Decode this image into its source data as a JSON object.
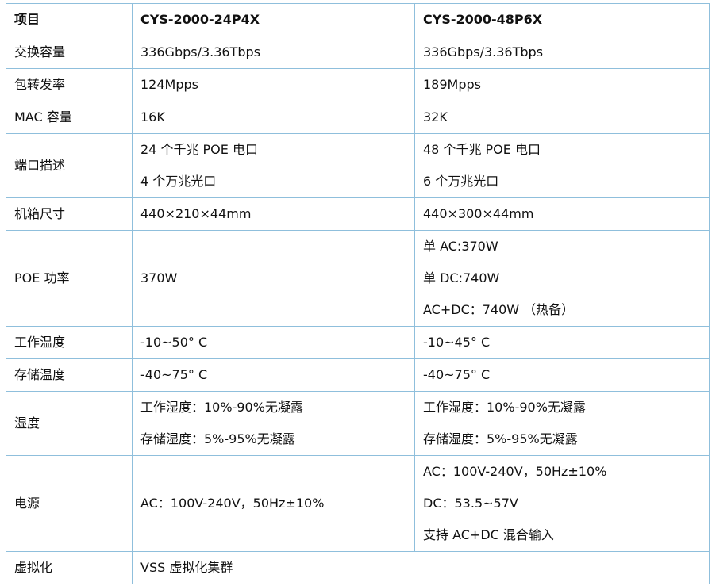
{
  "table": {
    "header": [
      "项目",
      "CYS-2000-24P4X",
      "CYS-2000-48P6X"
    ],
    "rows": [
      [
        [
          "交换容量"
        ],
        [
          "336Gbps/3.36Tbps"
        ],
        [
          "336Gbps/3.36Tbps"
        ]
      ],
      [
        [
          "包转发率"
        ],
        [
          "124Mpps"
        ],
        [
          "189Mpps"
        ]
      ],
      [
        [
          "MAC 容量"
        ],
        [
          "16K"
        ],
        [
          "32K"
        ]
      ],
      [
        [
          "端口描述"
        ],
        [
          "24 个千兆 POE 电口",
          "4 个万兆光口"
        ],
        [
          "48 个千兆 POE 电口",
          "6 个万兆光口"
        ]
      ],
      [
        [
          "机箱尺寸"
        ],
        [
          "440×210×44mm"
        ],
        [
          "440×300×44mm"
        ]
      ],
      [
        [
          "POE 功率"
        ],
        [
          "370W"
        ],
        [
          "单 AC:370W",
          "单 DC:740W",
          "AC+DC：740W （热备）"
        ]
      ],
      [
        [
          "工作温度"
        ],
        [
          "-10~50° C"
        ],
        [
          "-10~45° C"
        ]
      ],
      [
        [
          "存储温度"
        ],
        [
          "-40~75° C"
        ],
        [
          "-40~75° C"
        ]
      ],
      [
        [
          "湿度"
        ],
        [
          "工作湿度：10%-90%无凝露",
          "存储湿度：5%-95%无凝露"
        ],
        [
          "工作湿度：10%-90%无凝露",
          "存储湿度：5%-95%无凝露"
        ]
      ],
      [
        [
          "电源"
        ],
        [
          "AC：100V-240V，50Hz±10%"
        ],
        [
          "AC：100V-240V，50Hz±10%",
          "DC：53.5~57V",
          "支持 AC+DC 混合输入"
        ]
      ],
      [
        [
          "虚拟化"
        ],
        [
          "VSS 虚拟化集群"
        ]
      ]
    ]
  }
}
